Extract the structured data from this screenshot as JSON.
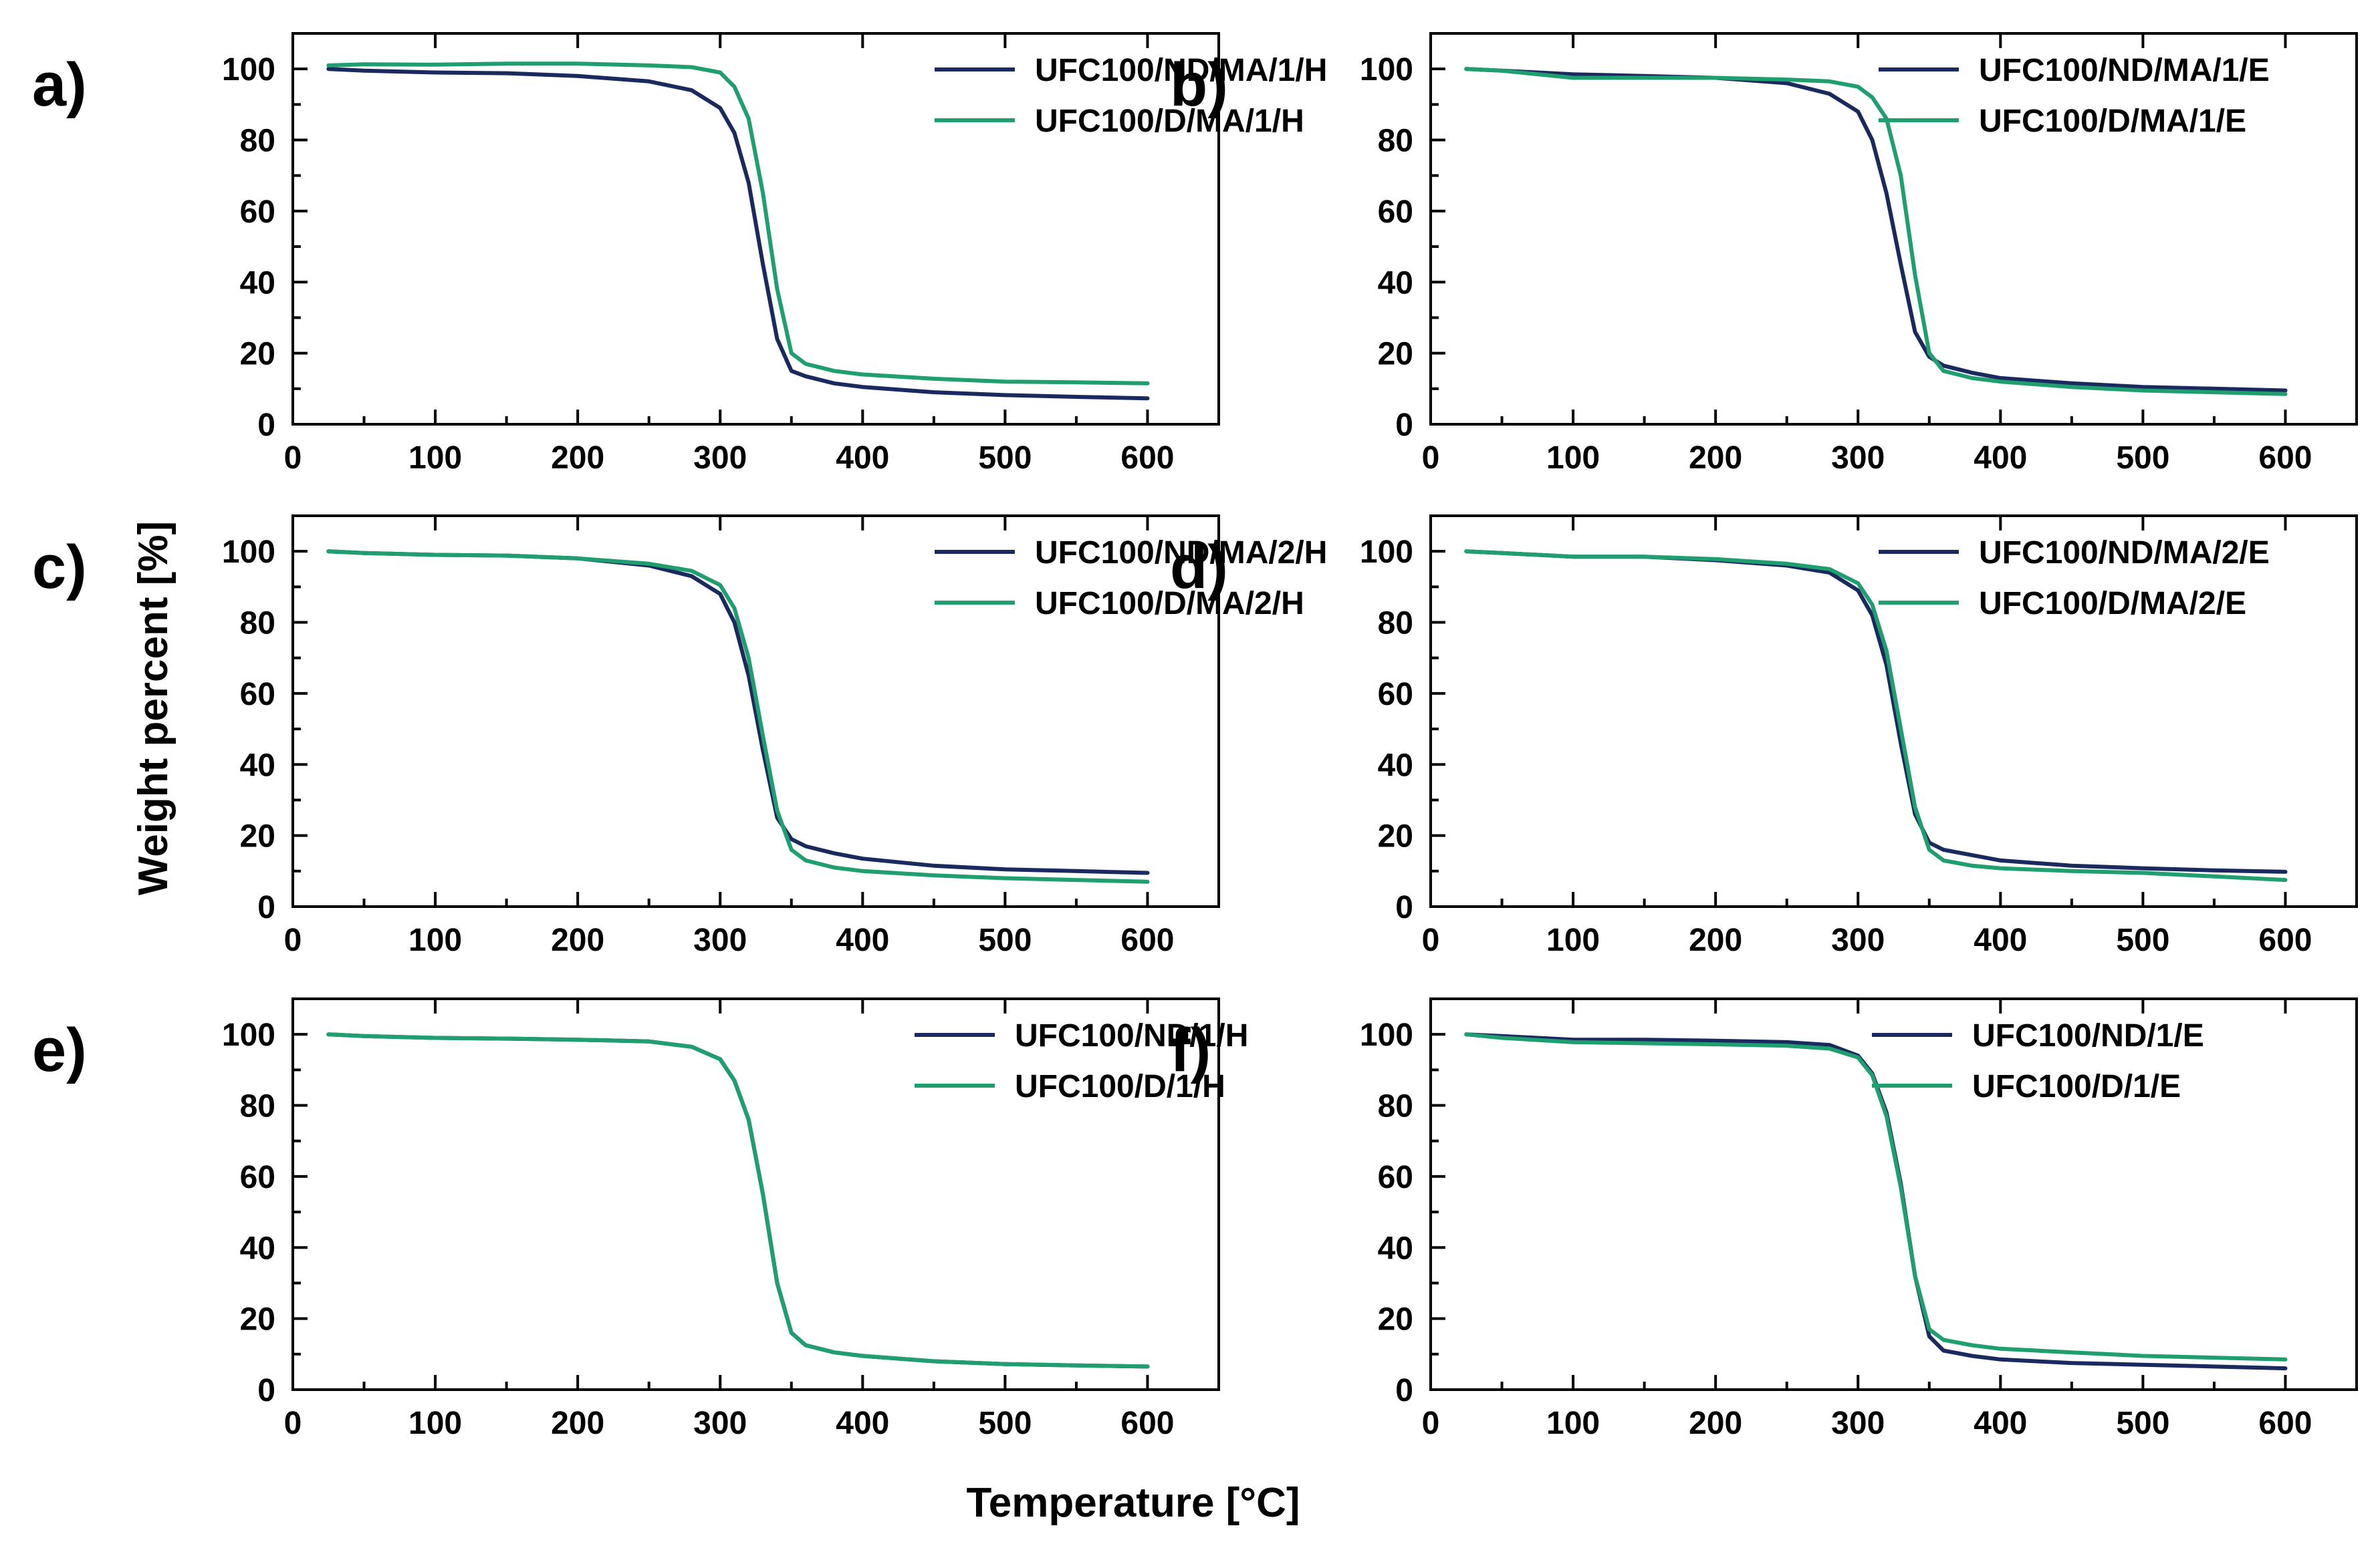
{
  "figure": {
    "xlabel": "Temperature [°C]",
    "ylabel": "Weight percent [%]"
  },
  "colors": {
    "ND": "#1b2a5e",
    "D": "#1f9e6f"
  },
  "chart_data": [
    {
      "type": "line",
      "panel": "a)",
      "xlim": [
        0,
        650
      ],
      "ylim": [
        0,
        110
      ],
      "xticks": [
        0,
        100,
        200,
        300,
        400,
        500,
        600
      ],
      "yticks": [
        0,
        20,
        40,
        60,
        80,
        100
      ],
      "series": [
        {
          "name": "UFC100/ND/MA/1/H",
          "color": "#1b2a5e",
          "x": [
            25,
            50,
            100,
            150,
            200,
            250,
            280,
            300,
            310,
            320,
            330,
            340,
            350,
            360,
            380,
            400,
            450,
            500,
            550,
            600
          ],
          "y": [
            100,
            99.5,
            99,
            98.8,
            98,
            96.5,
            94,
            89,
            82,
            68,
            45,
            24,
            15,
            13.5,
            11.5,
            10.5,
            9,
            8.2,
            7.7,
            7.3
          ]
        },
        {
          "name": "UFC100/D/MA/1/H",
          "color": "#1f9e6f",
          "x": [
            25,
            50,
            100,
            150,
            200,
            250,
            280,
            300,
            310,
            320,
            330,
            340,
            350,
            360,
            380,
            400,
            450,
            500,
            550,
            600
          ],
          "y": [
            101,
            101.3,
            101.2,
            101.5,
            101.5,
            101,
            100.5,
            99,
            95,
            86,
            65,
            38,
            20,
            17,
            15,
            14,
            12.8,
            12,
            11.8,
            11.5
          ]
        }
      ]
    },
    {
      "type": "line",
      "panel": "b)",
      "xlim": [
        0,
        650
      ],
      "ylim": [
        0,
        110
      ],
      "xticks": [
        0,
        100,
        200,
        300,
        400,
        500,
        600
      ],
      "yticks": [
        0,
        20,
        40,
        60,
        80,
        100
      ],
      "series": [
        {
          "name": "UFC100/ND/MA/1/E",
          "color": "#1b2a5e",
          "x": [
            25,
            50,
            100,
            150,
            200,
            250,
            280,
            300,
            310,
            320,
            330,
            340,
            350,
            360,
            380,
            400,
            450,
            500,
            550,
            600
          ],
          "y": [
            100,
            99.5,
            98.5,
            98,
            97.5,
            96,
            93,
            88,
            80,
            65,
            45,
            26,
            19,
            16.5,
            14.5,
            13,
            11.5,
            10.5,
            10,
            9.5
          ]
        },
        {
          "name": "UFC100/D/MA/1/E",
          "color": "#1f9e6f",
          "x": [
            25,
            50,
            100,
            150,
            200,
            250,
            280,
            300,
            310,
            320,
            330,
            340,
            350,
            360,
            380,
            400,
            450,
            500,
            550,
            600
          ],
          "y": [
            100,
            99.5,
            97.5,
            97.5,
            97.5,
            97,
            96.5,
            95,
            92,
            86,
            70,
            42,
            20,
            15,
            13,
            12,
            10.5,
            9.5,
            9,
            8.5
          ]
        }
      ]
    },
    {
      "type": "line",
      "panel": "c)",
      "xlim": [
        0,
        650
      ],
      "ylim": [
        0,
        110
      ],
      "xticks": [
        0,
        100,
        200,
        300,
        400,
        500,
        600
      ],
      "yticks": [
        0,
        20,
        40,
        60,
        80,
        100
      ],
      "series": [
        {
          "name": "UFC100/ND/MA/2/H",
          "color": "#1b2a5e",
          "x": [
            25,
            50,
            100,
            150,
            200,
            250,
            280,
            300,
            310,
            320,
            330,
            340,
            350,
            360,
            380,
            400,
            450,
            500,
            550,
            600
          ],
          "y": [
            100,
            99.5,
            99,
            98.8,
            98,
            96,
            93,
            88,
            80,
            65,
            44,
            25,
            19,
            17,
            15,
            13.5,
            11.5,
            10.5,
            10,
            9.5
          ]
        },
        {
          "name": "UFC100/D/MA/2/H",
          "color": "#1f9e6f",
          "x": [
            25,
            50,
            100,
            150,
            200,
            250,
            280,
            300,
            310,
            320,
            330,
            340,
            350,
            360,
            380,
            400,
            450,
            500,
            550,
            600
          ],
          "y": [
            100,
            99.5,
            99,
            98.8,
            98,
            96.5,
            94.5,
            90.5,
            84,
            70,
            48,
            27,
            16,
            13,
            11,
            10,
            8.8,
            8,
            7.5,
            7
          ]
        }
      ]
    },
    {
      "type": "line",
      "panel": "d)",
      "xlim": [
        0,
        650
      ],
      "ylim": [
        0,
        110
      ],
      "xticks": [
        0,
        100,
        200,
        300,
        400,
        500,
        600
      ],
      "yticks": [
        0,
        20,
        40,
        60,
        80,
        100
      ],
      "series": [
        {
          "name": "UFC100/ND/MA/2/E",
          "color": "#1b2a5e",
          "x": [
            25,
            50,
            100,
            150,
            200,
            250,
            280,
            300,
            310,
            320,
            330,
            340,
            350,
            360,
            380,
            400,
            450,
            500,
            550,
            600
          ],
          "y": [
            100,
            99.5,
            98.5,
            98.5,
            97.5,
            96,
            94,
            89,
            82,
            68,
            46,
            26,
            18,
            16,
            14.5,
            13,
            11.5,
            10.8,
            10.2,
            9.8
          ]
        },
        {
          "name": "UFC100/D/MA/2/E",
          "color": "#1f9e6f",
          "x": [
            25,
            50,
            100,
            150,
            200,
            250,
            280,
            300,
            310,
            320,
            330,
            340,
            350,
            360,
            380,
            400,
            450,
            500,
            550,
            600
          ],
          "y": [
            100,
            99.5,
            98.5,
            98.5,
            97.8,
            96.5,
            95,
            91,
            85,
            72,
            50,
            28,
            16,
            13,
            11.5,
            10.8,
            10,
            9.5,
            8.5,
            7.5
          ]
        }
      ]
    },
    {
      "type": "line",
      "panel": "e)",
      "xlim": [
        0,
        650
      ],
      "ylim": [
        0,
        110
      ],
      "xticks": [
        0,
        100,
        200,
        300,
        400,
        500,
        600
      ],
      "yticks": [
        0,
        20,
        40,
        60,
        80,
        100
      ],
      "series": [
        {
          "name": "UFC100/ND/1/H",
          "color": "#1b2a5e",
          "x": [
            25,
            50,
            100,
            150,
            200,
            250,
            280,
            300,
            310,
            320,
            330,
            340,
            350,
            360,
            380,
            400,
            450,
            500,
            550,
            600
          ],
          "y": [
            100,
            99.5,
            99,
            98.8,
            98.5,
            98,
            96.5,
            93,
            87,
            76,
            55,
            30,
            16,
            12.5,
            10.5,
            9.5,
            8,
            7.2,
            6.8,
            6.5
          ]
        },
        {
          "name": "UFC100/D/1/H",
          "color": "#1f9e6f",
          "x": [
            25,
            50,
            100,
            150,
            200,
            250,
            280,
            300,
            310,
            320,
            330,
            340,
            350,
            360,
            380,
            400,
            450,
            500,
            550,
            600
          ],
          "y": [
            100,
            99.5,
            99,
            98.8,
            98.5,
            98,
            96.5,
            93,
            87,
            76,
            55,
            30,
            16,
            12.5,
            10.5,
            9.5,
            8,
            7.2,
            6.8,
            6.5
          ]
        }
      ]
    },
    {
      "type": "line",
      "panel": "f)",
      "xlim": [
        0,
        650
      ],
      "ylim": [
        0,
        110
      ],
      "xticks": [
        0,
        100,
        200,
        300,
        400,
        500,
        600
      ],
      "yticks": [
        0,
        20,
        40,
        60,
        80,
        100
      ],
      "series": [
        {
          "name": "UFC100/ND/1/E",
          "color": "#1b2a5e",
          "x": [
            25,
            50,
            100,
            150,
            200,
            250,
            280,
            300,
            310,
            320,
            330,
            340,
            350,
            360,
            380,
            400,
            450,
            500,
            550,
            600
          ],
          "y": [
            100,
            99.5,
            98.5,
            98.5,
            98.2,
            97.8,
            97,
            94,
            89,
            78,
            58,
            32,
            15,
            11,
            9.5,
            8.5,
            7.5,
            7,
            6.5,
            6
          ]
        },
        {
          "name": "UFC100/D/1/E",
          "color": "#1f9e6f",
          "x": [
            25,
            50,
            100,
            150,
            200,
            250,
            280,
            300,
            310,
            320,
            330,
            340,
            350,
            360,
            380,
            400,
            450,
            500,
            550,
            600
          ],
          "y": [
            100,
            99,
            97.8,
            97.5,
            97.2,
            96.8,
            96,
            93.5,
            88.5,
            77,
            57,
            32,
            17,
            14,
            12.5,
            11.5,
            10.5,
            9.5,
            9,
            8.5
          ]
        }
      ]
    }
  ]
}
